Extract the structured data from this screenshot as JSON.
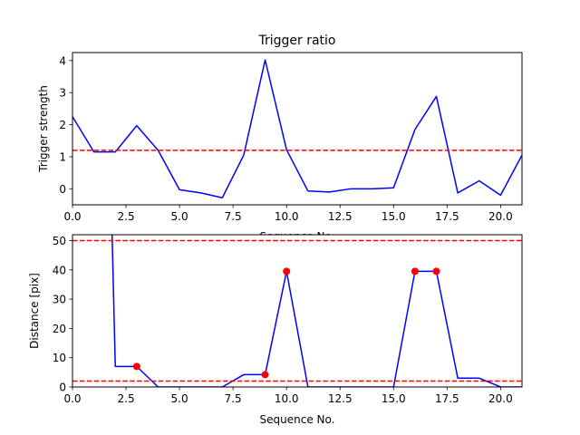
{
  "chart_data": [
    {
      "type": "line",
      "title": "Trigger ratio",
      "xlabel": "Sequence No.",
      "ylabel": "Trigger strength",
      "xlim": [
        0,
        21
      ],
      "ylim": [
        -0.5,
        4.25
      ],
      "xticks": [
        0,
        2.5,
        5,
        7.5,
        10,
        12.5,
        15,
        17.5,
        20
      ],
      "xtick_labels": [
        "0.0",
        "2.5",
        "5.0",
        "7.5",
        "10.0",
        "12.5",
        "15.0",
        "17.5",
        "20.0"
      ],
      "yticks": [
        0,
        1,
        2,
        3,
        4
      ],
      "ytick_labels": [
        "0",
        "1",
        "2",
        "3",
        "4"
      ],
      "series": [
        {
          "color": "#0000ff",
          "x": [
            0,
            1,
            2,
            3,
            4,
            5,
            6,
            7,
            8,
            9,
            10,
            11,
            12,
            13,
            14,
            15,
            16,
            17,
            18,
            19,
            20,
            21
          ],
          "y": [
            2.25,
            1.15,
            1.15,
            1.97,
            1.2,
            -0.03,
            -0.13,
            -0.28,
            1.05,
            4.02,
            1.22,
            -0.07,
            -0.1,
            0.0,
            0.0,
            0.03,
            1.85,
            2.88,
            -0.13,
            0.25,
            -0.2,
            1.05
          ]
        }
      ],
      "hlines": [
        {
          "y": 1.2,
          "color": "#ff0000",
          "style": "dashed"
        }
      ],
      "grid": false
    },
    {
      "type": "line",
      "title": "",
      "xlabel": "Sequence No.",
      "ylabel": "Distance [pix]",
      "xlim": [
        0,
        21
      ],
      "ylim": [
        0,
        52
      ],
      "xticks": [
        0,
        2.5,
        5,
        7.5,
        10,
        12.5,
        15,
        17.5,
        20
      ],
      "xtick_labels": [
        "0.0",
        "2.5",
        "5.0",
        "7.5",
        "10.0",
        "12.5",
        "15.0",
        "17.5",
        "20.0"
      ],
      "yticks": [
        0,
        10,
        20,
        30,
        40,
        50
      ],
      "ytick_labels": [
        "0",
        "10",
        "20",
        "30",
        "40",
        "50"
      ],
      "series": [
        {
          "color": "#0000ff",
          "x": [
            1.85,
            2,
            3,
            4,
            5,
            6,
            7,
            8,
            9,
            10,
            11,
            12,
            13,
            14,
            15,
            16,
            17,
            18,
            19,
            20,
            21
          ],
          "y": [
            52,
            7,
            7,
            0,
            0,
            0,
            0,
            4.2,
            4.2,
            39.5,
            0,
            0,
            0,
            0,
            0,
            39.5,
            39.5,
            3,
            3,
            0,
            0
          ]
        }
      ],
      "markers": {
        "color": "#ff0000",
        "x": [
          3,
          9,
          10,
          16,
          17
        ],
        "y": [
          7,
          4.2,
          39.5,
          39.5,
          39.5
        ]
      },
      "hlines": [
        {
          "y": 50,
          "color": "#ff0000",
          "style": "dashed"
        },
        {
          "y": 2,
          "color": "#ff0000",
          "style": "dashed"
        }
      ],
      "grid": false
    }
  ]
}
